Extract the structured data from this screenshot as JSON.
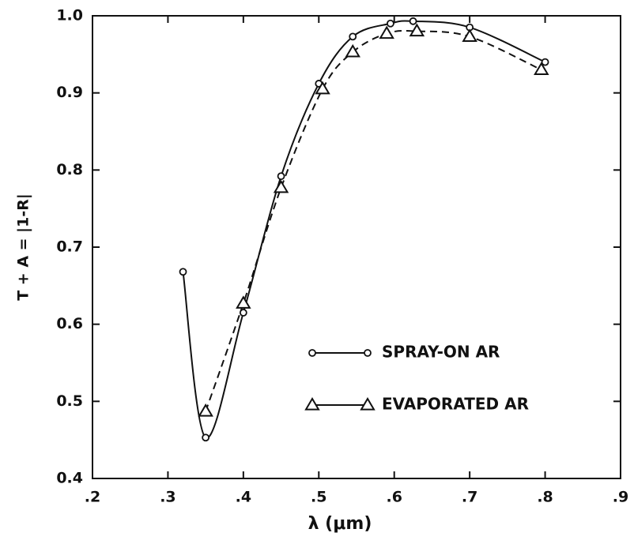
{
  "chart_data": {
    "type": "line",
    "xlabel": "λ (μm)",
    "ylabel": "T + A = |1-R|",
    "xlim": [
      0.2,
      0.9
    ],
    "xticks": [
      {
        "value": 0.2,
        "label": ".2"
      },
      {
        "value": 0.3,
        "label": ".3"
      },
      {
        "value": 0.4,
        "label": ".4"
      },
      {
        "value": 0.5,
        "label": ".5"
      },
      {
        "value": 0.6,
        "label": ".6"
      },
      {
        "value": 0.7,
        "label": ".7"
      },
      {
        "value": 0.8,
        "label": ".8"
      },
      {
        "value": 0.9,
        "label": ".9"
      }
    ],
    "ylim": [
      0.4,
      1.0
    ],
    "yticks": [
      0.4,
      0.5,
      0.6,
      0.7,
      0.8,
      0.9,
      {
        "value": 1.0,
        "label": "1.0"
      }
    ],
    "series": [
      {
        "name": "SPRAY-ON AR",
        "color": "#111",
        "marker": "circle",
        "linestyle": "solid",
        "x": [
          0.32,
          0.35,
          0.4,
          0.45,
          0.5,
          0.545,
          0.595,
          0.625,
          0.7,
          0.8
        ],
        "values": [
          0.668,
          0.453,
          0.615,
          0.792,
          0.912,
          0.973,
          0.99,
          0.993,
          0.985,
          0.94
        ]
      },
      {
        "name": "EVAPORATED AR",
        "color": "#111",
        "marker": "triangle",
        "linestyle": "dashed",
        "x": [
          0.35,
          0.4,
          0.45,
          0.505,
          0.545,
          0.59,
          0.63,
          0.7,
          0.795
        ],
        "values": [
          0.487,
          0.627,
          0.777,
          0.905,
          0.953,
          0.977,
          0.98,
          0.973,
          0.93
        ]
      }
    ]
  }
}
